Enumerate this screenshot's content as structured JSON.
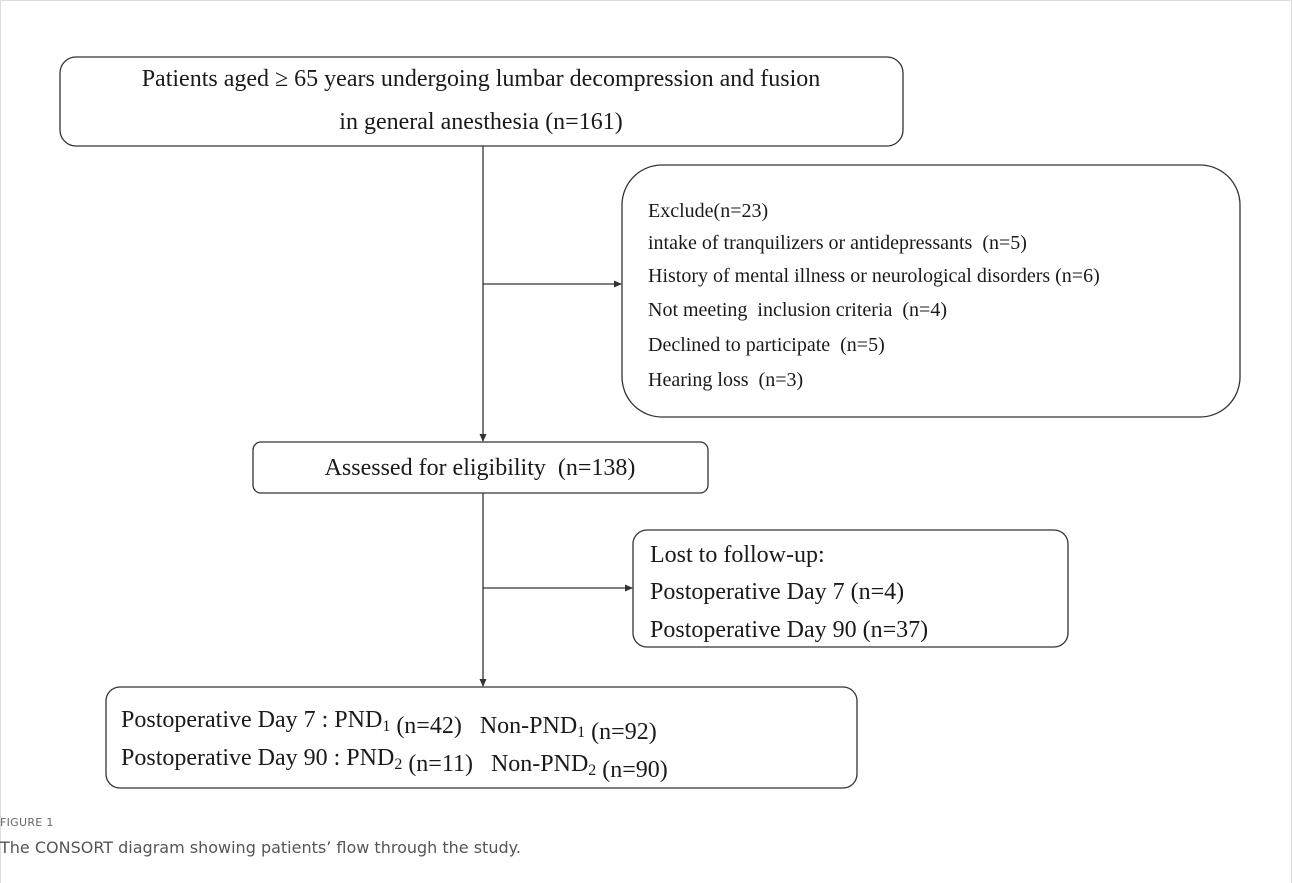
{
  "nodes": [
    {
      "lines": [
        [
          "Patients aged ≥ 65 years undergoing lumbar decompression and fusion"
        ],
        [
          "in general anesthesia (n=161)"
        ]
      ]
    },
    {
      "lines": [
        [
          "Exclude(n=23)"
        ],
        [
          "intake of tranquilizers or antidepressants  (n=5)"
        ],
        [
          "History of mental illness or neurological disorders (n=6)"
        ],
        [
          "Not meeting  inclusion criteria  (n=4)"
        ],
        [
          "Declined to participate  (n=5)"
        ],
        [
          "Hearing loss  (n=3)"
        ]
      ]
    },
    {
      "lines": [
        [
          "Assessed for eligibility  (n=138)"
        ]
      ]
    },
    {
      "lines": [
        [
          "Lost to follow-up:"
        ],
        [
          "Postoperative Day 7 (n=4)"
        ],
        [
          "Postoperative Day 90 (n=37)"
        ]
      ]
    },
    {
      "lines": [
        [
          "Postoperative Day 7 : PND",
          {
            "text": "1",
            "style": "sub"
          },
          " (n=42)   Non-PND",
          {
            "text": "1",
            "style": "sub"
          },
          " (n=92)"
        ],
        [
          "Postoperative Day 90 : PND",
          {
            "text": "2",
            "style": "sub"
          },
          " (n=11)   Non-PND",
          {
            "text": "2",
            "style": "sub"
          },
          " (n=90)"
        ]
      ]
    }
  ],
  "figure": {
    "label": "FIGURE 1",
    "caption": "The CONSORT diagram showing patients’ flow through the study."
  }
}
